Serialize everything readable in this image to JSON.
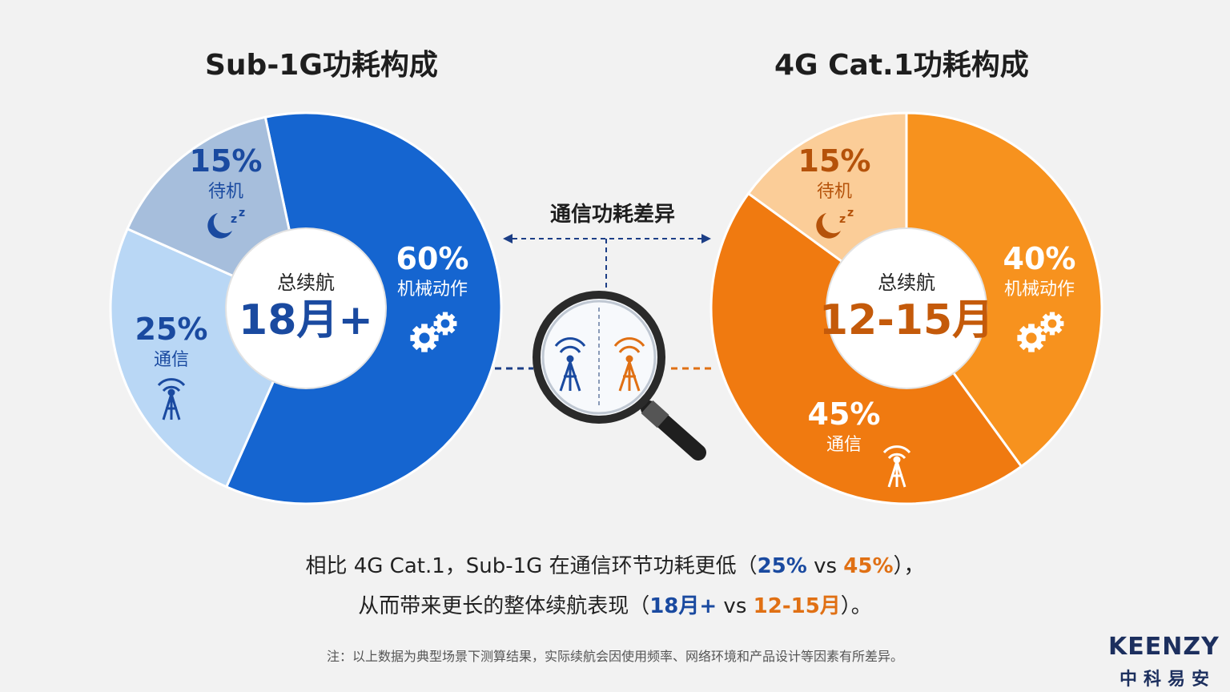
{
  "chart_data": [
    {
      "type": "pie",
      "title": "Sub-1G功耗构成",
      "center_label": "总续航",
      "center_value": "18月+",
      "slices": [
        {
          "label": "机械动作",
          "value": 60,
          "display": "60%",
          "icon": "gears-icon",
          "color": "#1565d0"
        },
        {
          "label": "通信",
          "value": 25,
          "display": "25%",
          "icon": "antenna-tower-icon",
          "color": "#b9d7f5"
        },
        {
          "label": "待机",
          "value": 15,
          "display": "15%",
          "icon": "moon-sleep-icon",
          "color": "#a6bedc"
        }
      ]
    },
    {
      "type": "pie",
      "title": "4G Cat.1功耗构成",
      "center_label": "总续航",
      "center_value": "12-15月",
      "slices": [
        {
          "label": "机械动作",
          "value": 40,
          "display": "40%",
          "icon": "gears-icon",
          "color": "#f7921e"
        },
        {
          "label": "通信",
          "value": 45,
          "display": "45%",
          "icon": "antenna-tower-icon",
          "color": "#f07a10"
        },
        {
          "label": "待机",
          "value": 15,
          "display": "15%",
          "icon": "moon-sleep-icon",
          "color": "#fbcd98"
        }
      ]
    }
  ],
  "comparison_label": "通信功耗差异",
  "caption": {
    "line1_a": "相比 4G Cat.1，Sub-1G 在通信环节功耗更低（",
    "line1_blue": "25%",
    "line1_mid": " vs  ",
    "line1_orange": "45%",
    "line1_b": "），",
    "line2_a": "从而带来更长的整体续航表现（",
    "line2_blue": "18月+",
    "line2_mid": " vs ",
    "line2_orange": "12-15月",
    "line2_b": "）。"
  },
  "note": "注：以上数据为典型场景下测算结果，实际续航会因使用频率、网络环境和产品设计等因素有所差异。",
  "brand": {
    "en": "KEENZY",
    "cn": "中科易安"
  },
  "colors": {
    "blue_dark": "#1a4aa0",
    "orange_dark": "#c45a0a",
    "text_dark": "#1e1e1e"
  }
}
